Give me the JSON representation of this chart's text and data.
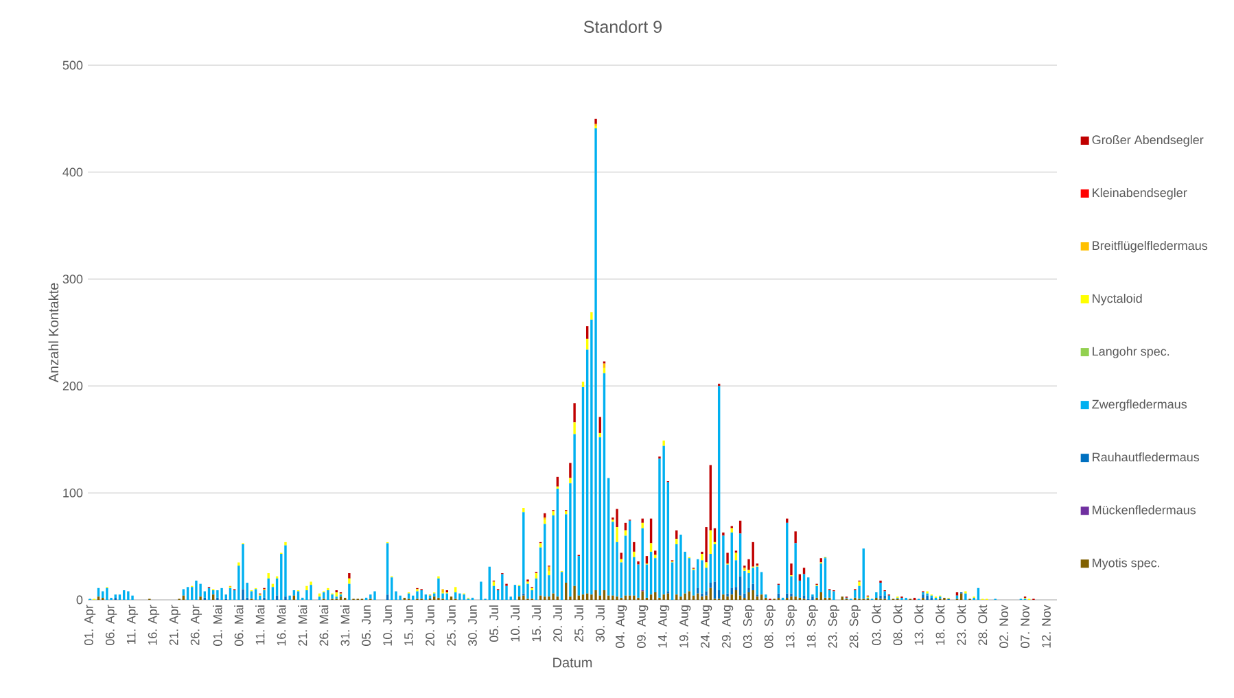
{
  "chart_data": {
    "type": "bar",
    "stacked": true,
    "title": "Standort 9",
    "xlabel": "Datum",
    "ylabel": "Anzahl Kontakte",
    "categories": [
      "01. Apr",
      null,
      null,
      null,
      null,
      "06. Apr",
      null,
      null,
      null,
      null,
      "11. Apr",
      null,
      null,
      null,
      null,
      "16. Apr",
      null,
      null,
      null,
      null,
      "21. Apr",
      null,
      null,
      null,
      null,
      "26. Apr",
      null,
      null,
      null,
      null,
      "01. Mai",
      null,
      null,
      null,
      null,
      "06. Mai",
      null,
      null,
      null,
      null,
      "11. Mai",
      null,
      null,
      null,
      null,
      "16. Mai",
      null,
      null,
      null,
      null,
      "21. Mai",
      null,
      null,
      null,
      null,
      "26. Mai",
      null,
      null,
      null,
      null,
      "31. Mai",
      null,
      null,
      null,
      null,
      "05. Jun",
      null,
      null,
      null,
      null,
      "10. Jun",
      null,
      null,
      null,
      null,
      "15. Jun",
      null,
      null,
      null,
      null,
      "20. Jun",
      null,
      null,
      null,
      null,
      "25. Jun",
      null,
      null,
      null,
      null,
      "30. Jun",
      null,
      null,
      null,
      null,
      "05. Jul",
      null,
      null,
      null,
      null,
      "10. Jul",
      null,
      null,
      null,
      null,
      "15. Jul",
      null,
      null,
      null,
      null,
      "20. Jul",
      null,
      null,
      null,
      null,
      "25. Jul",
      null,
      null,
      null,
      null,
      "30. Jul",
      null,
      null,
      null,
      null,
      "04. Aug",
      null,
      null,
      null,
      null,
      "09. Aug",
      null,
      null,
      null,
      null,
      "14. Aug",
      null,
      null,
      null,
      null,
      "19. Aug",
      null,
      null,
      null,
      null,
      "24. Aug",
      null,
      null,
      null,
      null,
      "29. Aug",
      null,
      null,
      null,
      null,
      "03. Sep",
      null,
      null,
      null,
      null,
      "08. Sep",
      null,
      null,
      null,
      null,
      "13. Sep",
      null,
      null,
      null,
      null,
      "18. Sep",
      null,
      null,
      null,
      null,
      "23. Sep",
      null,
      null,
      null,
      null,
      "28. Sep",
      null,
      null,
      null,
      null,
      "03. Okt",
      null,
      null,
      null,
      null,
      "08. Okt",
      null,
      null,
      null,
      null,
      "13. Okt",
      null,
      null,
      null,
      null,
      "18. Okt",
      null,
      null,
      null,
      null,
      "23. Okt",
      null,
      null,
      null,
      null,
      "28. Okt",
      null,
      null,
      null,
      null,
      "02. Nov",
      null,
      null,
      null,
      null,
      "07. Nov",
      null,
      null,
      null,
      null,
      "12. Nov",
      null,
      null
    ],
    "ylim": [
      0,
      500
    ],
    "yticks": [
      0,
      100,
      200,
      300,
      400,
      500
    ],
    "grid": "y",
    "legend": "right",
    "series": [
      {
        "name": "Myotis spec.",
        "color": "#806000",
        "values": [
          0,
          0,
          3,
          2,
          0,
          0,
          0,
          0,
          0,
          0,
          0,
          0,
          0,
          0,
          1,
          0,
          0,
          0,
          0,
          0,
          0,
          1,
          4,
          0,
          0,
          0,
          3,
          0,
          0,
          5,
          0,
          0,
          0,
          0,
          0,
          0,
          0,
          0,
          1,
          0,
          0,
          0,
          0,
          0,
          0,
          0,
          0,
          0,
          4,
          0,
          0,
          0,
          0,
          0,
          0,
          1,
          0,
          1,
          1,
          3,
          2,
          0,
          1,
          1,
          1,
          0,
          1,
          0,
          0,
          0,
          0,
          0,
          0,
          0,
          2,
          1,
          0,
          1,
          1,
          0,
          1,
          3,
          2,
          1,
          0,
          3,
          1,
          0,
          0,
          0,
          0,
          0,
          0,
          0,
          0,
          0,
          0,
          0,
          0,
          0,
          0,
          3,
          4,
          1,
          1,
          0,
          4,
          3,
          3,
          6,
          3,
          0,
          16,
          3,
          13,
          4,
          5,
          6,
          5,
          9,
          4,
          9,
          4,
          4,
          3,
          2,
          4,
          4,
          4,
          2,
          8,
          2,
          5,
          7,
          2,
          5,
          6,
          0,
          5,
          3,
          6,
          8,
          4,
          6,
          3,
          4,
          11,
          1,
          1,
          5,
          3,
          5,
          9,
          4,
          2,
          7,
          9,
          3,
          5,
          2,
          0,
          1,
          2,
          0,
          2,
          3,
          3,
          2,
          1,
          0,
          0,
          2,
          7,
          2,
          2,
          0,
          0,
          3,
          1,
          0,
          2,
          1,
          1,
          1,
          0,
          2,
          1,
          1,
          0,
          1,
          1,
          0,
          0,
          1,
          0,
          0,
          2,
          0,
          0,
          0,
          1,
          2,
          0,
          0,
          1,
          6,
          0,
          1,
          0,
          0,
          0,
          0,
          0,
          0,
          0,
          0,
          0,
          0,
          0,
          0,
          0,
          0,
          0,
          0,
          0,
          0,
          0,
          0
        ]
      },
      {
        "name": "Mückenfledermaus",
        "color": "#7030a0",
        "values": [
          0,
          0,
          0,
          0,
          0,
          0,
          0,
          0,
          0,
          0,
          0,
          0,
          0,
          0,
          0,
          0,
          0,
          0,
          0,
          0,
          0,
          0,
          0,
          0,
          0,
          0,
          0,
          0,
          0,
          0,
          0,
          0,
          0,
          0,
          0,
          0,
          0,
          0,
          0,
          0,
          0,
          0,
          0,
          0,
          0,
          0,
          0,
          0,
          0,
          0,
          0,
          0,
          0,
          0,
          0,
          0,
          0,
          0,
          0,
          0,
          0,
          0,
          0,
          0,
          0,
          0,
          0,
          0,
          0,
          0,
          0,
          0,
          0,
          0,
          0,
          0,
          0,
          0,
          0,
          0,
          0,
          0,
          0,
          0,
          0,
          0,
          0,
          0,
          0,
          0,
          0,
          0,
          0,
          0,
          0,
          0,
          0,
          0,
          0,
          0,
          0,
          0,
          0,
          0,
          0,
          0,
          0,
          0,
          0,
          0,
          0,
          0,
          0,
          0,
          0,
          0,
          0,
          0,
          0,
          0,
          0,
          0,
          0,
          0,
          0,
          0,
          0,
          0,
          0,
          0,
          1,
          0,
          0,
          0,
          0,
          0,
          0,
          0,
          0,
          0,
          0,
          0,
          0,
          0,
          0,
          0,
          0,
          0,
          0,
          0,
          0,
          0,
          0,
          0,
          0,
          0,
          0,
          0,
          0,
          0,
          0,
          0,
          0,
          0,
          0,
          0,
          0,
          0,
          0,
          0,
          0,
          0,
          0,
          0,
          0,
          0,
          0,
          0,
          0,
          0,
          0,
          0,
          0,
          0,
          0,
          0,
          0,
          0,
          0,
          0,
          0,
          0,
          0,
          0,
          0,
          0,
          0,
          0,
          0,
          0,
          0,
          0,
          0,
          0,
          0,
          0,
          0,
          0,
          0,
          0,
          0,
          0,
          0,
          0,
          0,
          0,
          0,
          0,
          0,
          0,
          0,
          0,
          0,
          0,
          0,
          0,
          0,
          0
        ]
      },
      {
        "name": "Rauhautfledermaus",
        "color": "#0070c0",
        "values": [
          0,
          0,
          0,
          0,
          0,
          0,
          2,
          0,
          0,
          0,
          0,
          0,
          0,
          0,
          0,
          0,
          0,
          0,
          0,
          0,
          0,
          0,
          0,
          0,
          0,
          0,
          0,
          2,
          0,
          0,
          2,
          0,
          1,
          0,
          0,
          0,
          10,
          2,
          0,
          0,
          0,
          2,
          0,
          0,
          4,
          0,
          3,
          0,
          0,
          0,
          0,
          0,
          0,
          0,
          0,
          0,
          0,
          0,
          0,
          0,
          0,
          0,
          0,
          0,
          0,
          0,
          0,
          0,
          0,
          0,
          5,
          0,
          0,
          0,
          0,
          0,
          0,
          0,
          0,
          0,
          1,
          0,
          0,
          0,
          0,
          0,
          0,
          0,
          0,
          0,
          0,
          0,
          0,
          0,
          0,
          0,
          0,
          0,
          0,
          0,
          0,
          0,
          2,
          0,
          0,
          0,
          0,
          0,
          0,
          0,
          0,
          0,
          0,
          0,
          0,
          0,
          0,
          0,
          0,
          0,
          0,
          0,
          0,
          0,
          0,
          0,
          0,
          0,
          0,
          0,
          0,
          0,
          0,
          0,
          0,
          0,
          2,
          0,
          0,
          0,
          0,
          0,
          0,
          5,
          3,
          4,
          5,
          16,
          8,
          0,
          3,
          6,
          3,
          18,
          4,
          4,
          6,
          2,
          0,
          0,
          0,
          0,
          4,
          0,
          4,
          3,
          0,
          0,
          3,
          1,
          3,
          0,
          0,
          0,
          0,
          0,
          0,
          0,
          0,
          0,
          0,
          0,
          0,
          0,
          0,
          0,
          3,
          3,
          0,
          0,
          0,
          0,
          0,
          0,
          0,
          0,
          3,
          4,
          2,
          0,
          0,
          0,
          1,
          0,
          0,
          1,
          0,
          0,
          0,
          0,
          0,
          0,
          0,
          0,
          0,
          0,
          0,
          0,
          0,
          0,
          0,
          0,
          0,
          0,
          0,
          0,
          0,
          0
        ]
      },
      {
        "name": "Zwergfledermaus",
        "color": "#00b0f0",
        "values": [
          1,
          0,
          8,
          6,
          11,
          2,
          3,
          5,
          9,
          8,
          4,
          0,
          0,
          0,
          0,
          0,
          0,
          0,
          0,
          0,
          0,
          0,
          6,
          12,
          12,
          18,
          12,
          6,
          11,
          4,
          7,
          11,
          4,
          11,
          9,
          32,
          42,
          14,
          7,
          10,
          4,
          7,
          20,
          12,
          16,
          43,
          48,
          4,
          5,
          8,
          2,
          9,
          14,
          0,
          3,
          6,
          9,
          4,
          2,
          2,
          0,
          15,
          0,
          0,
          0,
          2,
          4,
          8,
          0,
          0,
          48,
          21,
          8,
          4,
          0,
          5,
          4,
          7,
          8,
          5,
          2,
          3,
          18,
          5,
          6,
          0,
          6,
          6,
          5,
          1,
          2,
          0,
          17,
          1,
          31,
          13,
          9,
          24,
          13,
          3,
          14,
          10,
          76,
          14,
          8,
          20,
          45,
          68,
          20,
          73,
          101,
          26,
          64,
          106,
          142,
          37,
          194,
          228,
          257,
          432,
          148,
          203,
          110,
          69,
          51,
          33,
          56,
          70,
          36,
          31,
          58,
          31,
          40,
          32,
          130,
          139,
          102,
          35,
          47,
          58,
          39,
          31,
          24,
          27,
          31,
          22,
          27,
          35,
          191,
          55,
          27,
          52,
          25,
          40,
          21,
          14,
          15,
          26,
          21,
          3,
          0,
          0,
          8,
          2,
          66,
          16,
          50,
          16,
          20,
          20,
          2,
          11,
          27,
          37,
          7,
          8,
          0,
          0,
          1,
          1,
          7,
          12,
          47,
          1,
          1,
          5,
          12,
          4,
          4,
          0,
          1,
          2,
          2,
          0,
          0,
          1,
          2,
          2,
          2,
          2,
          2,
          0,
          0,
          0,
          3,
          0,
          6,
          0,
          2,
          11,
          0,
          0,
          0,
          1,
          0,
          0,
          0,
          0,
          0,
          1,
          1,
          0,
          0,
          0,
          0,
          0,
          0,
          0
        ]
      },
      {
        "name": "Langohr spec.",
        "color": "#92d050",
        "values": [
          0,
          0,
          0,
          0,
          0,
          0,
          0,
          0,
          0,
          0,
          0,
          0,
          0,
          0,
          0,
          0,
          0,
          0,
          0,
          0,
          0,
          0,
          0,
          0,
          0,
          0,
          0,
          0,
          0,
          0,
          0,
          0,
          0,
          0,
          0,
          0,
          0,
          0,
          0,
          0,
          0,
          0,
          0,
          0,
          0,
          0,
          0,
          0,
          0,
          0,
          0,
          0,
          0,
          0,
          0,
          0,
          0,
          0,
          0,
          0,
          0,
          0,
          0,
          0,
          0,
          0,
          0,
          0,
          0,
          0,
          0,
          0,
          0,
          0,
          0,
          0,
          0,
          0,
          0,
          0,
          0,
          0,
          0,
          0,
          0,
          0,
          0,
          0,
          0,
          0,
          0,
          0,
          0,
          0,
          0,
          0,
          0,
          0,
          0,
          0,
          0,
          0,
          0,
          0,
          0,
          0,
          0,
          0,
          0,
          0,
          0,
          0,
          0,
          0,
          0,
          0,
          0,
          0,
          0,
          0,
          0,
          0,
          0,
          0,
          0,
          0,
          0,
          0,
          0,
          0,
          0,
          0,
          0,
          0,
          0,
          0,
          0,
          0,
          0,
          0,
          0,
          0,
          0,
          0,
          0,
          0,
          0,
          0,
          0,
          0,
          0,
          0,
          0,
          0,
          0,
          0,
          0,
          0,
          0,
          0,
          0,
          0,
          0,
          0,
          0,
          0,
          0,
          0,
          0,
          0,
          0,
          0,
          0,
          1,
          0,
          0,
          0,
          0,
          0,
          0,
          0,
          0,
          0,
          0,
          0,
          0,
          0,
          0,
          0,
          0,
          0,
          0,
          0,
          0,
          0,
          0,
          0,
          0,
          0,
          0,
          0,
          0,
          0,
          0,
          0,
          0,
          0,
          0,
          0,
          0,
          0,
          0,
          0,
          0,
          0,
          0,
          0,
          0,
          0,
          0,
          0,
          0,
          0,
          0,
          0,
          0,
          0,
          0
        ]
      },
      {
        "name": "Nyctaloid",
        "color": "#ffff00",
        "values": [
          0,
          1,
          0,
          0,
          1,
          0,
          0,
          0,
          0,
          0,
          0,
          0,
          0,
          0,
          0,
          0,
          0,
          0,
          0,
          0,
          0,
          0,
          0,
          0,
          1,
          0,
          0,
          0,
          0,
          1,
          0,
          0,
          0,
          1,
          0,
          3,
          1,
          0,
          1,
          1,
          1,
          0,
          5,
          3,
          2,
          1,
          3,
          0,
          0,
          1,
          0,
          4,
          3,
          0,
          3,
          1,
          2,
          1,
          4,
          1,
          0,
          5,
          0,
          0,
          0,
          0,
          0,
          0,
          0,
          0,
          1,
          1,
          0,
          0,
          0,
          1,
          0,
          2,
          0,
          0,
          0,
          1,
          2,
          1,
          1,
          0,
          5,
          0,
          1,
          1,
          0,
          0,
          0,
          0,
          0,
          4,
          0,
          0,
          0,
          0,
          0,
          1,
          4,
          2,
          2,
          5,
          4,
          4,
          4,
          4,
          2,
          1,
          3,
          5,
          11,
          0,
          5,
          10,
          7,
          2,
          4,
          5,
          0,
          2,
          14,
          3,
          5,
          0,
          5,
          0,
          5,
          1,
          8,
          3,
          0,
          5,
          0,
          1,
          5,
          0,
          0,
          1,
          1,
          0,
          6,
          5,
          22,
          2,
          0,
          0,
          1,
          4,
          7,
          0,
          1,
          3,
          1,
          1,
          0,
          0,
          0,
          0,
          0,
          0,
          0,
          1,
          0,
          0,
          0,
          0,
          0,
          1,
          1,
          0,
          0,
          0,
          0,
          0,
          0,
          0,
          0,
          4,
          0,
          1,
          0,
          0,
          0,
          0,
          0,
          0,
          1,
          0,
          0,
          0,
          0,
          0,
          0,
          2,
          1,
          1,
          1,
          0,
          1,
          0,
          0,
          0,
          2,
          0,
          1,
          0,
          1,
          1,
          0,
          0,
          0,
          0,
          0,
          0,
          0,
          0,
          1,
          1,
          0,
          0,
          0,
          0,
          0,
          0
        ]
      },
      {
        "name": "Breitflügelfledermaus",
        "color": "#ffc000",
        "values": [
          0,
          0,
          0,
          0,
          0,
          0,
          0,
          0,
          0,
          0,
          0,
          0,
          0,
          0,
          0,
          0,
          0,
          0,
          0,
          0,
          0,
          0,
          0,
          0,
          0,
          0,
          0,
          0,
          0,
          0,
          0,
          0,
          0,
          1,
          0,
          0,
          0,
          0,
          0,
          0,
          0,
          1,
          0,
          0,
          0,
          0,
          0,
          0,
          0,
          0,
          0,
          0,
          0,
          0,
          0,
          0,
          0,
          0,
          0,
          0,
          0,
          0,
          0,
          0,
          0,
          0,
          0,
          0,
          0,
          0,
          0,
          0,
          0,
          0,
          0,
          0,
          0,
          0,
          0,
          0,
          1,
          0,
          0,
          3,
          0,
          0,
          0,
          0,
          0,
          0,
          0,
          0,
          0,
          0,
          0,
          0,
          0,
          0,
          0,
          0,
          0,
          0,
          0,
          0,
          0,
          0,
          0,
          2,
          4,
          0,
          0,
          0,
          0,
          0,
          0,
          0,
          0,
          0,
          0,
          2,
          0,
          4,
          0,
          0,
          0,
          0,
          0,
          0,
          0,
          0,
          0,
          0,
          0,
          0,
          0,
          0,
          0,
          0,
          0,
          0,
          0,
          0,
          0,
          0,
          0,
          0,
          0,
          0,
          0,
          0,
          0,
          0,
          0,
          0,
          2,
          0,
          0,
          0,
          0,
          0,
          0,
          0,
          0,
          0,
          0,
          0,
          0,
          0,
          0,
          0,
          0,
          0,
          0,
          0,
          0,
          0,
          0,
          0,
          0,
          0,
          0,
          0,
          0,
          0,
          0,
          0,
          0,
          0,
          0,
          0,
          0,
          0,
          0,
          0,
          0,
          0,
          0,
          0,
          0,
          0,
          0,
          0,
          0,
          0,
          0,
          0,
          0,
          0,
          0,
          0,
          0,
          0,
          0,
          0,
          0,
          0,
          0,
          0,
          0,
          0,
          0,
          0,
          0,
          0,
          0,
          0,
          0,
          0
        ]
      },
      {
        "name": "Kleinabendsegler",
        "color": "#ff0000",
        "values": [
          0,
          0,
          0,
          0,
          0,
          0,
          0,
          0,
          0,
          0,
          0,
          0,
          0,
          0,
          0,
          0,
          0,
          0,
          0,
          0,
          0,
          0,
          0,
          0,
          0,
          0,
          0,
          0,
          0,
          0,
          0,
          0,
          0,
          0,
          0,
          0,
          0,
          0,
          0,
          0,
          0,
          0,
          0,
          0,
          0,
          0,
          0,
          0,
          0,
          0,
          0,
          0,
          0,
          0,
          0,
          0,
          0,
          0,
          0,
          0,
          0,
          0,
          0,
          0,
          0,
          0,
          0,
          0,
          0,
          0,
          0,
          0,
          0,
          0,
          0,
          0,
          0,
          0,
          0,
          0,
          0,
          0,
          0,
          0,
          0,
          0,
          0,
          0,
          0,
          0,
          0,
          0,
          0,
          0,
          0,
          0,
          0,
          0,
          0,
          0,
          0,
          0,
          0,
          0,
          0,
          0,
          0,
          0,
          0,
          0,
          0,
          0,
          0,
          0,
          0,
          0,
          0,
          0,
          0,
          0,
          0,
          0,
          0,
          0,
          0,
          0,
          0,
          0,
          0,
          0,
          0,
          0,
          0,
          0,
          0,
          0,
          0,
          0,
          0,
          0,
          0,
          0,
          0,
          0,
          0,
          0,
          0,
          0,
          0,
          0,
          0,
          0,
          0,
          0,
          0,
          0,
          0,
          0,
          0,
          0,
          0,
          0,
          0,
          0,
          0,
          0,
          0,
          0,
          0,
          0,
          0,
          0,
          0,
          0,
          0,
          0,
          0,
          0,
          0,
          0,
          0,
          0,
          0,
          0,
          0,
          0,
          0,
          0,
          0,
          0,
          0,
          0,
          0,
          0,
          0,
          0,
          0,
          0,
          0,
          0,
          0,
          0,
          0,
          0,
          0,
          0,
          0,
          0,
          0,
          0,
          0,
          0,
          0,
          0,
          0,
          0,
          0,
          0,
          0,
          0,
          0,
          0,
          0,
          0,
          0,
          0,
          0,
          0
        ]
      },
      {
        "name": "Großer Abendsegler",
        "color": "#c00000",
        "values": [
          0,
          0,
          0,
          0,
          0,
          0,
          0,
          0,
          0,
          0,
          0,
          0,
          0,
          0,
          0,
          0,
          0,
          0,
          0,
          0,
          0,
          0,
          0,
          0,
          0,
          0,
          0,
          0,
          1,
          0,
          0,
          0,
          0,
          0,
          1,
          0,
          0,
          0,
          0,
          0,
          1,
          1,
          0,
          0,
          0,
          0,
          0,
          0,
          0,
          0,
          0,
          0,
          0,
          0,
          0,
          0,
          0,
          0,
          2,
          1,
          0,
          5,
          0,
          0,
          0,
          0,
          0,
          0,
          0,
          0,
          0,
          0,
          0,
          0,
          0,
          0,
          0,
          1,
          1,
          0,
          0,
          0,
          0,
          0,
          2,
          0,
          0,
          0,
          0,
          0,
          0,
          0,
          0,
          0,
          0,
          1,
          1,
          1,
          2,
          0,
          0,
          0,
          0,
          2,
          1,
          1,
          1,
          4,
          1,
          1,
          9,
          0,
          1,
          14,
          18,
          1,
          0,
          12,
          0,
          5,
          15,
          2,
          0,
          2,
          17,
          6,
          7,
          1,
          9,
          3,
          4,
          7,
          23,
          4,
          2,
          0,
          1,
          1,
          8,
          0,
          0,
          0,
          1,
          0,
          2,
          33,
          61,
          13,
          2,
          3,
          10,
          2,
          2,
          12,
          2,
          10,
          23,
          2,
          0,
          0,
          1,
          0,
          1,
          0,
          4,
          11,
          11,
          6,
          6,
          0,
          0,
          1,
          4,
          0,
          1,
          1,
          0,
          0,
          1,
          0,
          1,
          1,
          0,
          1,
          0,
          0,
          2,
          1,
          1,
          0,
          0,
          1,
          0,
          0,
          2,
          0,
          1,
          0,
          0,
          0,
          0,
          0,
          0,
          0,
          3,
          0,
          0,
          0,
          0,
          0,
          0,
          0,
          0,
          0,
          0,
          0,
          0,
          0,
          0,
          0,
          1,
          0,
          1,
          0,
          0,
          0,
          0,
          0
        ]
      }
    ]
  }
}
